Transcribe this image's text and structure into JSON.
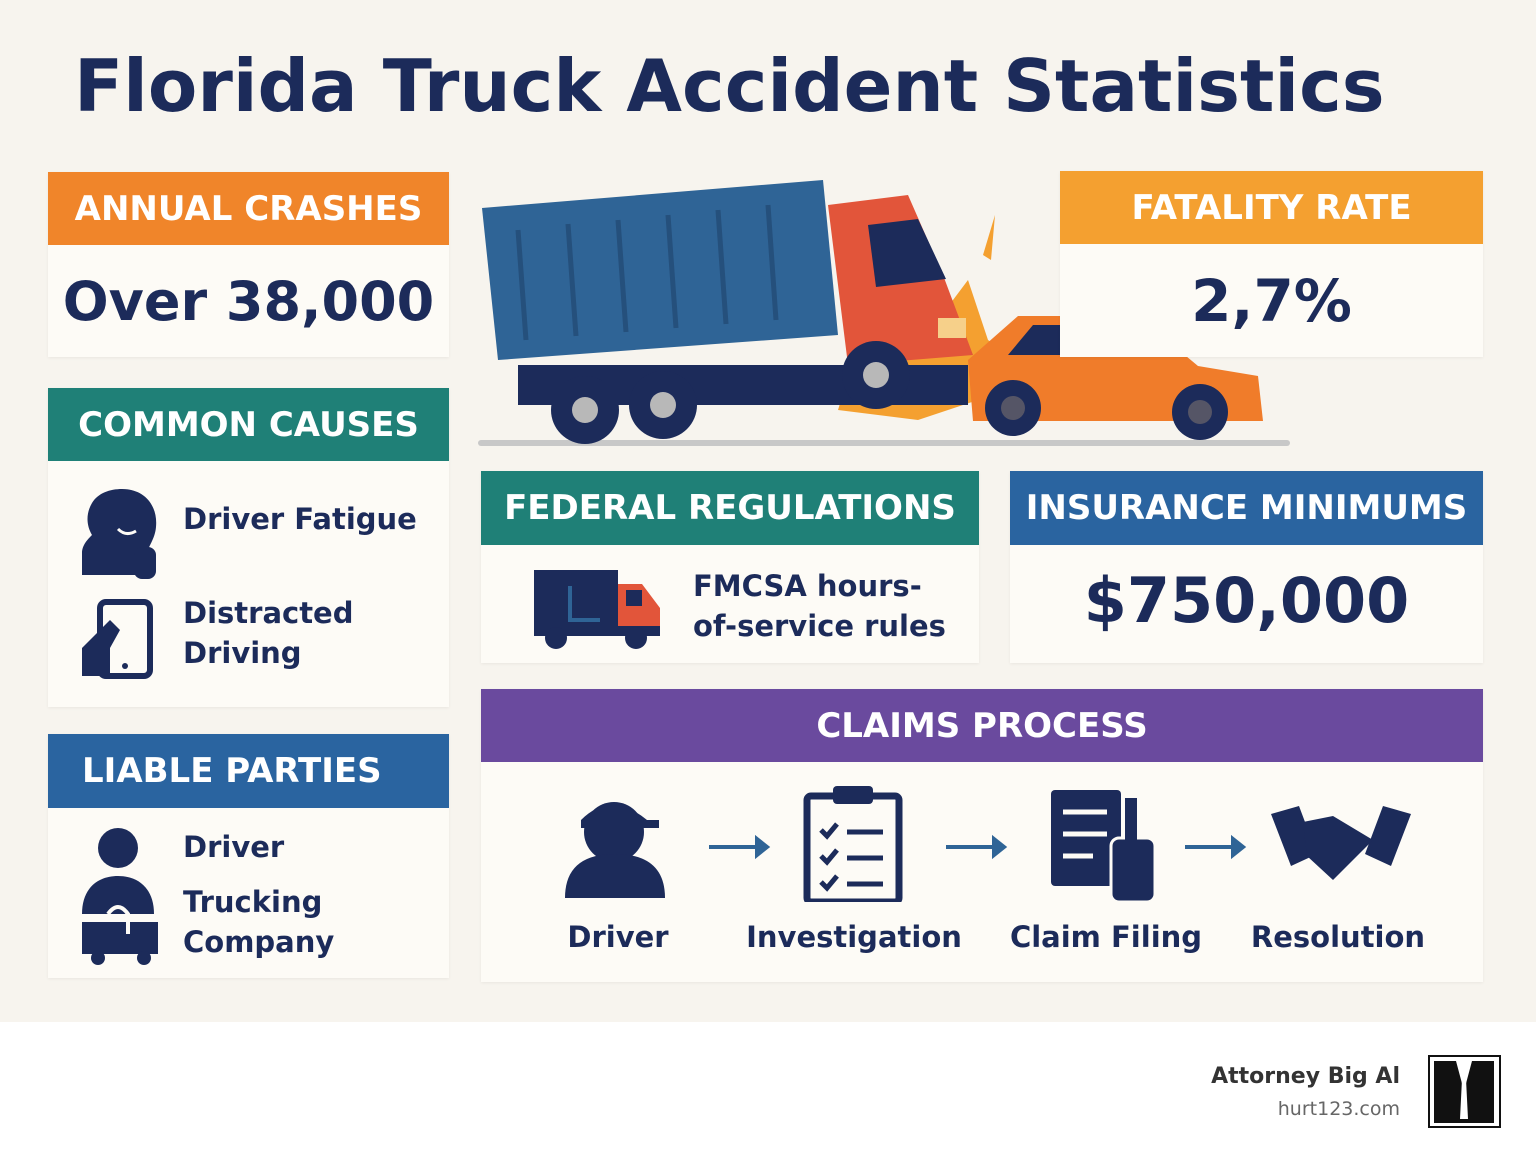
{
  "title": "Florida Truck Accident Statistics",
  "annual_crashes": {
    "header": "ANNUAL CRASHES",
    "value": "Over 38,000"
  },
  "common_causes": {
    "header": "COMMON CAUSES",
    "items": [
      "Driver Fatigue",
      "Distracted Driving"
    ]
  },
  "liable_parties": {
    "header": "LIABLE PARTIES",
    "items": [
      "Driver",
      "Trucking Company"
    ]
  },
  "fatality_rate": {
    "header": "FATALITY RATE",
    "value": "2,7%"
  },
  "federal_regulations": {
    "header": "FEDERAL REGULATIONS",
    "text": "FMCSA hours-of-service rules"
  },
  "insurance_minimums": {
    "header": "INSURANCE MINIMUMS",
    "value": "$750,000"
  },
  "claims_process": {
    "header": "CLAIMS PROCESS",
    "steps": [
      "Driver",
      "Investigation",
      "Claim Filing",
      "Resolution"
    ]
  },
  "footer": {
    "brand": "Attorney Big Al",
    "url": "hurt123.com"
  }
}
